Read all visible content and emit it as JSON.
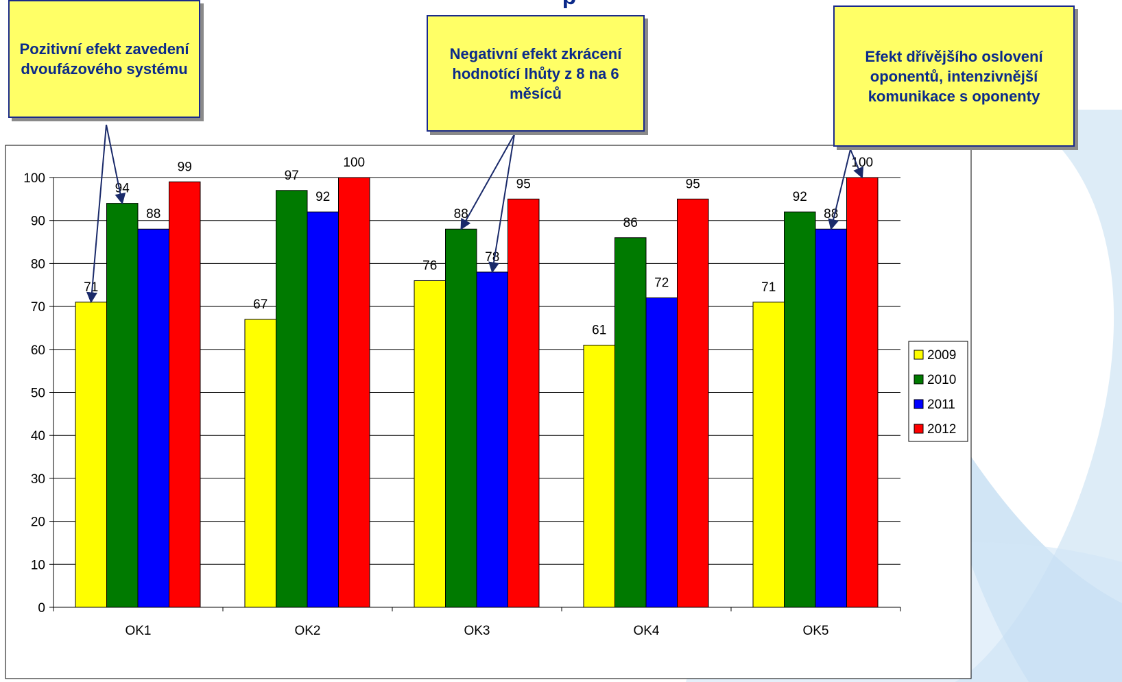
{
  "title_fragment": "p",
  "callouts": [
    {
      "id": "callout-1",
      "text": "Pozitivní efekt zavedení dvoufázového systému"
    },
    {
      "id": "callout-2",
      "text": "Negativní efekt zkrácení hodnotící lhůty z 8 na 6 měsíců"
    },
    {
      "id": "callout-3",
      "text": "Efekt dřívějšího oslovení oponentů, intenzivnější komunikace s oponenty"
    }
  ],
  "chart_data": {
    "type": "bar",
    "categories": [
      "OK1",
      "OK2",
      "OK3",
      "OK4",
      "OK5"
    ],
    "series": [
      {
        "name": "2009",
        "color": "#ffff00",
        "values": [
          71,
          67,
          76,
          61,
          71
        ]
      },
      {
        "name": "2010",
        "color": "#007a00",
        "values": [
          94,
          97,
          88,
          86,
          92
        ]
      },
      {
        "name": "2011",
        "color": "#0000ff",
        "values": [
          88,
          92,
          78,
          72,
          88
        ]
      },
      {
        "name": "2012",
        "color": "#ff0000",
        "values": [
          99,
          100,
          95,
          95,
          100
        ]
      }
    ],
    "ylim": [
      0,
      100
    ],
    "yticks": [
      0,
      10,
      20,
      30,
      40,
      50,
      60,
      70,
      80,
      90,
      100
    ],
    "grid": true,
    "legend": "right",
    "data_labels": true
  }
}
